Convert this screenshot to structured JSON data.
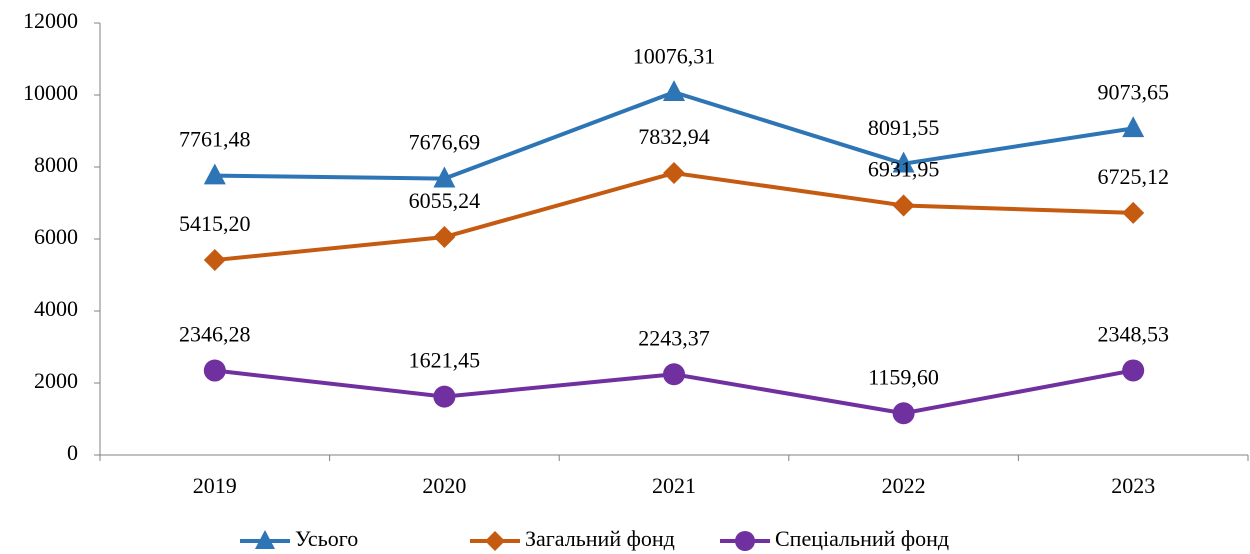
{
  "chart_data": {
    "type": "line",
    "categories": [
      "2019",
      "2020",
      "2021",
      "2022",
      "2023"
    ],
    "series": [
      {
        "name": "Усього",
        "color": "#2e75b6",
        "marker": "triangle",
        "values": [
          7761.48,
          7676.69,
          10076.31,
          8091.55,
          9073.65
        ],
        "value_labels": [
          "7761,48",
          "7676,69",
          "10076,31",
          "8091,55",
          "9073,65"
        ]
      },
      {
        "name": "Загальний фонд",
        "color": "#c55a11",
        "marker": "diamond",
        "values": [
          5415.2,
          6055.24,
          7832.94,
          6931.95,
          6725.12
        ],
        "value_labels": [
          "5415,20",
          "6055,24",
          "7832,94",
          "6931,95",
          "6725,12"
        ]
      },
      {
        "name": "Спеціальний фонд",
        "color": "#7030a0",
        "marker": "circle",
        "values": [
          2346.28,
          1621.45,
          2243.37,
          1159.6,
          2348.53
        ],
        "value_labels": [
          "2346,28",
          "1621,45",
          "2243,37",
          "1159,60",
          "2348,53"
        ]
      }
    ],
    "ylim": [
      0,
      12000
    ],
    "yticks": [
      0,
      2000,
      4000,
      6000,
      8000,
      10000,
      12000
    ],
    "grid": false,
    "legend": "bottom"
  }
}
